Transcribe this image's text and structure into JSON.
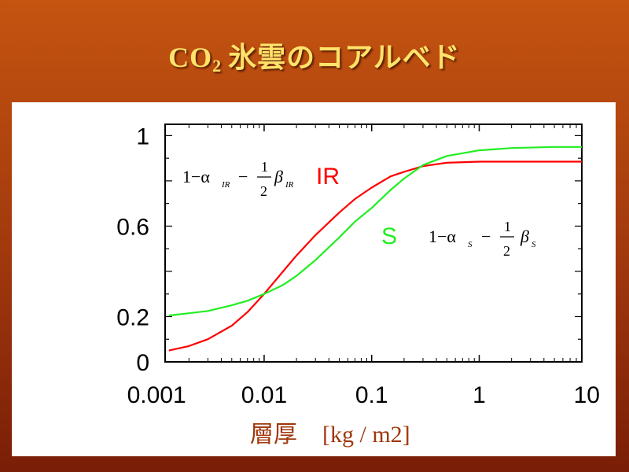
{
  "slide": {
    "title_main": "CO",
    "title_sub": "2",
    "title_rest": "氷雲のコアルベド"
  },
  "colors": {
    "title": "#ffe36a",
    "background_top": "#c45410",
    "background_bottom": "#7a1e07",
    "xlabel": "#a0380d",
    "ir_series": "#ff0000",
    "s_series": "#22ee22"
  },
  "chart_data": {
    "type": "line",
    "x_scale": "log",
    "xlim": [
      0.0012,
      9
    ],
    "ylim": [
      0,
      1.05
    ],
    "xticks": [
      0.001,
      0.01,
      0.1,
      1,
      10
    ],
    "xtick_labels": [
      "0.001",
      "0.01",
      "0.1",
      "1",
      "10"
    ],
    "yticks": [
      0,
      0.2,
      0.6,
      1
    ],
    "ytick_labels": [
      "0",
      "0.2",
      "0.6",
      "1"
    ],
    "xlabel_text": "層厚",
    "xlabel_unit": "[kg / m2]",
    "grid": false,
    "series": [
      {
        "name": "IR",
        "x": [
          0.0013,
          0.002,
          0.003,
          0.005,
          0.007,
          0.01,
          0.015,
          0.02,
          0.03,
          0.05,
          0.07,
          0.1,
          0.15,
          0.2,
          0.3,
          0.5,
          1,
          2,
          5,
          9
        ],
        "y": [
          0.05,
          0.07,
          0.1,
          0.16,
          0.22,
          0.3,
          0.4,
          0.47,
          0.56,
          0.66,
          0.72,
          0.77,
          0.82,
          0.84,
          0.865,
          0.88,
          0.885,
          0.885,
          0.885,
          0.885
        ]
      },
      {
        "name": "S",
        "x": [
          0.0013,
          0.002,
          0.003,
          0.005,
          0.007,
          0.01,
          0.015,
          0.02,
          0.03,
          0.05,
          0.07,
          0.1,
          0.15,
          0.2,
          0.3,
          0.5,
          1,
          2,
          5,
          9
        ],
        "y": [
          0.205,
          0.215,
          0.225,
          0.25,
          0.27,
          0.3,
          0.34,
          0.38,
          0.45,
          0.55,
          0.62,
          0.68,
          0.76,
          0.81,
          0.87,
          0.91,
          0.935,
          0.945,
          0.95,
          0.95
        ]
      }
    ],
    "annotations": {
      "ir_formula": {
        "prefix": "1−α",
        "alpha_sub": "IR",
        "minus": "−",
        "frac_num": "1",
        "frac_den": "2",
        "beta": "β",
        "beta_sub": "IR"
      },
      "ir_label": "IR",
      "s_label": "S",
      "s_formula": {
        "prefix": "1−α",
        "alpha_sub": "S",
        "minus": "−",
        "frac_num": "1",
        "frac_den": "2",
        "beta": "β",
        "beta_sub": "S"
      }
    }
  }
}
